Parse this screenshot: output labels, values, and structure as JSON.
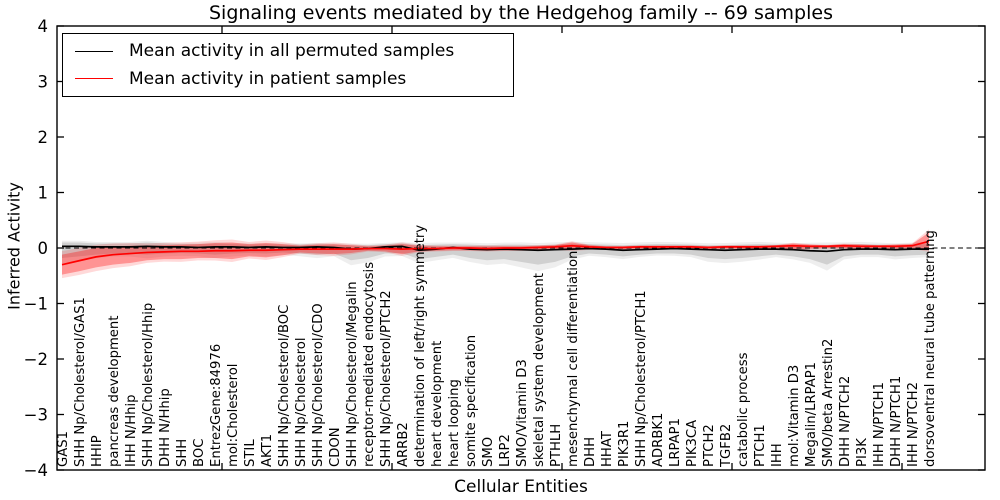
{
  "chart_data": {
    "type": "line",
    "title": "Signaling events mediated by the Hedgehog family -- 69 samples",
    "xlabel": "Cellular Entities",
    "ylabel": "Inferred Activity",
    "ylim": [
      -4,
      4
    ],
    "yticks": [
      "4",
      "3",
      "2",
      "1",
      "0",
      "−1",
      "−2",
      "−3",
      "−4"
    ],
    "grid": false,
    "legend_position": "upper left",
    "zero_reference_line": "dashed black at y=0",
    "categories": [
      "GAS1",
      "SHH Np/Cholesterol/GAS1",
      "HHIP",
      "pancreas development",
      "IHH N/Hhip",
      "SHH Np/Cholesterol/Hhip",
      "DHH N/Hhip",
      "SHH",
      "BOC",
      "EntrezGene:84976",
      "mol:Cholesterol",
      "STIL",
      "AKT1",
      "SHH Np/Cholesterol/BOC",
      "SHH Np/Cholesterol",
      "SHH Np/Cholesterol/CDO",
      "CDON",
      "SHH Np/Cholesterol/Megalin",
      "receptor-mediated endocytosis",
      "SHH Np/Cholesterol/PTCH2",
      "ARRB2",
      "determination of left/right symmetry",
      "heart development",
      "heart looping",
      "somite specification",
      "SMO",
      "LRP2",
      "SMO/Vitamin D3",
      "skeletal system development",
      "PTHLH",
      "mesenchymal cell differentiation",
      "DHH",
      "HHAT",
      "PIK3R1",
      "SHH Np/Cholesterol/PTCH1",
      "ADRBK1",
      "LRPAP1",
      "PIK3CA",
      "PTCH2",
      "TGFB2",
      "catabolic process",
      "PTCH1",
      "IHH",
      "mol:Vitamin D3",
      "Megalin/LRPAP1",
      "SMO/beta Arrestin2",
      "DHH N/PTCH2",
      "PI3K",
      "IHH N/PTCH1",
      "DHH N/PTCH1",
      "IHH N/PTCH2",
      "dorsoventral neural tube patterning"
    ],
    "series": [
      {
        "name": "Mean activity in all permuted samples",
        "color": "#000000",
        "band_color": "#aaaaaa",
        "values": [
          0.03,
          0.03,
          0.02,
          0.02,
          0.02,
          0.03,
          0.02,
          0.02,
          0.01,
          0.02,
          0.02,
          0.01,
          0.02,
          0.01,
          0.01,
          0.02,
          0.01,
          -0.02,
          -0.01,
          0.02,
          0.03,
          -0.04,
          -0.02,
          0.01,
          -0.02,
          -0.03,
          -0.02,
          -0.03,
          -0.04,
          -0.03,
          -0.02,
          -0.01,
          -0.02,
          -0.04,
          -0.03,
          -0.02,
          -0.01,
          -0.02,
          -0.03,
          -0.04,
          -0.03,
          -0.02,
          -0.02,
          -0.03,
          -0.05,
          -0.06,
          -0.03,
          -0.02,
          -0.02,
          -0.03,
          -0.02,
          -0.02
        ],
        "band_hi": [
          0.1,
          0.1,
          0.08,
          0.08,
          0.08,
          0.1,
          0.08,
          0.07,
          0.07,
          0.08,
          0.07,
          0.06,
          0.07,
          0.06,
          0.06,
          0.07,
          0.06,
          0.05,
          0.05,
          0.07,
          0.08,
          0.05,
          0.06,
          0.07,
          0.06,
          0.05,
          0.06,
          0.06,
          0.05,
          0.06,
          0.07,
          0.07,
          0.06,
          0.05,
          0.06,
          0.07,
          0.07,
          0.06,
          0.05,
          0.05,
          0.06,
          0.07,
          0.06,
          0.05,
          0.05,
          0.05,
          0.06,
          0.07,
          0.06,
          0.05,
          0.06,
          0.07
        ],
        "band_lo": [
          -0.18,
          -0.15,
          -0.12,
          -0.1,
          -0.1,
          -0.12,
          -0.1,
          -0.09,
          -0.1,
          -0.12,
          -0.1,
          -0.09,
          -0.1,
          -0.08,
          -0.1,
          -0.12,
          -0.1,
          -0.22,
          -0.18,
          -0.1,
          -0.09,
          -0.2,
          -0.16,
          -0.12,
          -0.18,
          -0.22,
          -0.2,
          -0.25,
          -0.3,
          -0.25,
          -0.15,
          -0.1,
          -0.12,
          -0.15,
          -0.12,
          -0.1,
          -0.1,
          -0.12,
          -0.18,
          -0.2,
          -0.18,
          -0.15,
          -0.12,
          -0.15,
          -0.2,
          -0.3,
          -0.15,
          -0.12,
          -0.12,
          -0.15,
          -0.13,
          -0.12
        ]
      },
      {
        "name": "Mean activity in patient samples",
        "color": "#ff0000",
        "band_color": "#ff0000",
        "values": [
          -0.3,
          -0.23,
          -0.16,
          -0.12,
          -0.1,
          -0.08,
          -0.07,
          -0.06,
          -0.06,
          -0.05,
          -0.05,
          -0.04,
          -0.04,
          -0.03,
          -0.02,
          -0.02,
          -0.02,
          -0.02,
          -0.01,
          -0.01,
          -0.02,
          -0.01,
          -0.01,
          0.0,
          0.0,
          -0.01,
          0.0,
          0.0,
          0.01,
          0.02,
          0.04,
          0.02,
          0.01,
          0.01,
          0.02,
          0.02,
          0.02,
          0.02,
          0.01,
          0.02,
          0.02,
          0.02,
          0.03,
          0.04,
          0.03,
          0.03,
          0.04,
          0.03,
          0.03,
          0.03,
          0.04,
          0.12
        ],
        "band_hi": [
          -0.12,
          -0.06,
          0.0,
          0.03,
          0.04,
          0.04,
          0.05,
          0.06,
          0.07,
          0.09,
          0.1,
          0.07,
          0.09,
          0.07,
          0.04,
          0.06,
          0.07,
          0.05,
          0.03,
          0.04,
          0.07,
          0.04,
          0.03,
          0.03,
          0.03,
          0.03,
          0.03,
          0.03,
          0.04,
          0.05,
          0.1,
          0.05,
          0.03,
          0.03,
          0.04,
          0.04,
          0.04,
          0.04,
          0.03,
          0.04,
          0.04,
          0.04,
          0.05,
          0.08,
          0.06,
          0.05,
          0.07,
          0.06,
          0.05,
          0.06,
          0.07,
          0.28
        ],
        "band_lo": [
          -0.48,
          -0.42,
          -0.35,
          -0.3,
          -0.27,
          -0.22,
          -0.2,
          -0.2,
          -0.18,
          -0.18,
          -0.2,
          -0.15,
          -0.17,
          -0.13,
          -0.08,
          -0.1,
          -0.11,
          -0.09,
          -0.05,
          -0.06,
          -0.11,
          -0.06,
          -0.05,
          -0.04,
          -0.04,
          -0.05,
          -0.04,
          -0.04,
          -0.03,
          -0.02,
          -0.03,
          -0.02,
          -0.02,
          -0.02,
          -0.01,
          -0.01,
          -0.01,
          -0.01,
          -0.02,
          -0.01,
          -0.01,
          -0.01,
          0.0,
          -0.02,
          -0.01,
          0.0,
          0.0,
          -0.01,
          0.0,
          -0.01,
          0.0,
          -0.02
        ]
      }
    ]
  },
  "legend": {
    "items": [
      {
        "label": "Mean activity in all permuted samples",
        "color": "#000000"
      },
      {
        "label": "Mean activity in patient samples",
        "color": "#ff0000"
      }
    ]
  }
}
